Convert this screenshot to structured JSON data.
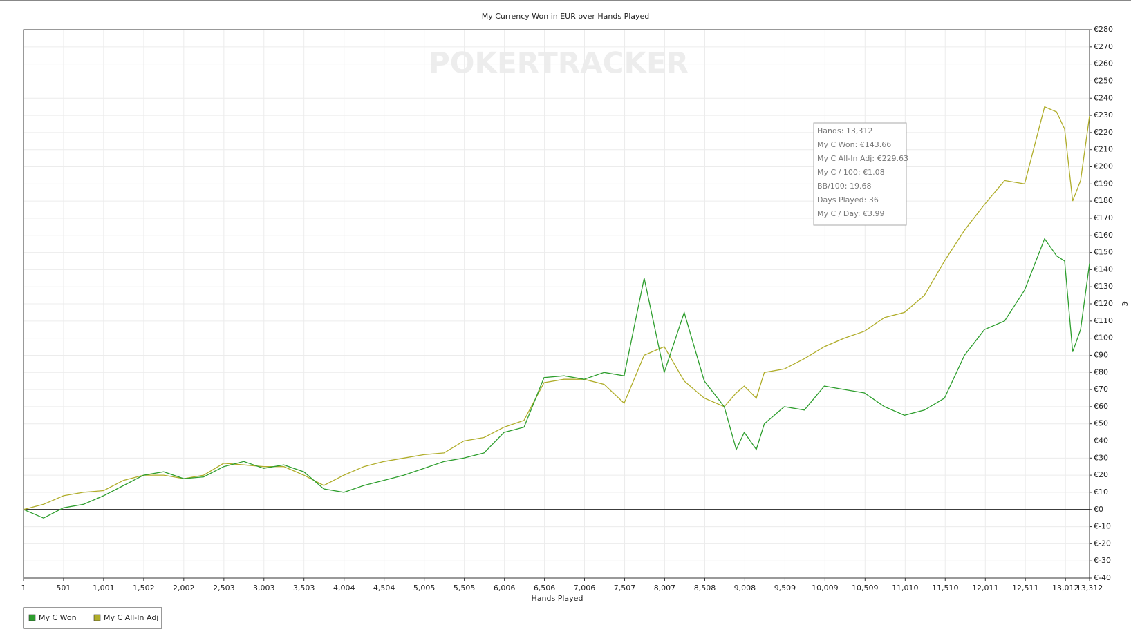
{
  "chart_data": {
    "type": "line",
    "title": "My Currency Won in EUR over Hands Played",
    "watermark": "POKERTRACKER",
    "x_label": "Hands Played",
    "y_label": "€",
    "grid": true,
    "legend": "bottom-left",
    "x": [
      1,
      251,
      501,
      751,
      1001,
      1251,
      1501,
      1751,
      2001,
      2251,
      2501,
      2751,
      3001,
      3251,
      3501,
      3751,
      4001,
      4251,
      4501,
      4751,
      5001,
      5251,
      5501,
      5751,
      6001,
      6251,
      6501,
      6751,
      7001,
      7251,
      7501,
      7751,
      8001,
      8251,
      8501,
      8751,
      8901,
      9001,
      9151,
      9251,
      9501,
      9751,
      10001,
      10251,
      10501,
      10751,
      11001,
      11251,
      11501,
      11751,
      12001,
      12251,
      12501,
      12751,
      12901,
      13001,
      13101,
      13201,
      13312
    ],
    "series": [
      {
        "name": "My C Won",
        "color": "#2e9e2e",
        "values": [
          0,
          -5,
          1,
          3,
          8,
          14,
          20,
          22,
          18,
          19,
          25,
          28,
          24,
          26,
          22,
          12,
          10,
          14,
          17,
          20,
          24,
          28,
          30,
          33,
          45,
          48,
          77,
          78,
          76,
          80,
          78,
          135,
          80,
          115,
          75,
          60,
          35,
          45,
          35,
          50,
          60,
          58,
          72,
          70,
          68,
          60,
          55,
          58,
          65,
          90,
          105,
          110,
          128,
          158,
          148,
          145,
          92,
          105,
          143.66
        ]
      },
      {
        "name": "My C All-In Adj",
        "color": "#b0ad2a",
        "values": [
          0,
          3,
          8,
          10,
          11,
          17,
          20,
          20,
          18,
          20,
          27,
          26,
          25,
          25,
          20,
          14,
          20,
          25,
          28,
          30,
          32,
          33,
          40,
          42,
          48,
          52,
          74,
          76,
          76,
          73,
          62,
          90,
          95,
          75,
          65,
          60,
          68,
          72,
          65,
          80,
          82,
          88,
          95,
          100,
          104,
          112,
          115,
          125,
          145,
          163,
          178,
          192,
          190,
          235,
          232,
          222,
          180,
          192,
          229.63
        ]
      }
    ],
    "xlim": [
      1,
      13312
    ],
    "xticks": [
      1,
      {
        "value": 501,
        "label": "501"
      },
      {
        "value": 1001,
        "label": "1,001"
      },
      {
        "value": 1502,
        "label": "1,502"
      },
      {
        "value": 2002,
        "label": "2,002"
      },
      {
        "value": 2503,
        "label": "2,503"
      },
      {
        "value": 3003,
        "label": "3,003"
      },
      {
        "value": 3503,
        "label": "3,503"
      },
      {
        "value": 4004,
        "label": "4,004"
      },
      {
        "value": 4504,
        "label": "4,504"
      },
      {
        "value": 5005,
        "label": "5,005"
      },
      {
        "value": 5505,
        "label": "5,505"
      },
      {
        "value": 6006,
        "label": "6,006"
      },
      {
        "value": 6506,
        "label": "6,506"
      },
      {
        "value": 7006,
        "label": "7,006"
      },
      {
        "value": 7507,
        "label": "7,507"
      },
      {
        "value": 8007,
        "label": "8,007"
      },
      {
        "value": 8508,
        "label": "8,508"
      },
      {
        "value": 9008,
        "label": "9,008"
      },
      {
        "value": 9509,
        "label": "9,509"
      },
      {
        "value": 10009,
        "label": "10,009"
      },
      {
        "value": 10509,
        "label": "10,509"
      },
      {
        "value": 11010,
        "label": "11,010"
      },
      {
        "value": 11510,
        "label": "11,510"
      },
      {
        "value": 12011,
        "label": "12,011"
      },
      {
        "value": 12511,
        "label": "12,511"
      },
      {
        "value": 13012,
        "label": "13,012"
      },
      {
        "value": 13312,
        "label": "13,312"
      }
    ],
    "ylim": [
      -40,
      280
    ],
    "yticks": [
      {
        "value": -40,
        "label": "€-40"
      },
      {
        "value": -30,
        "label": "€-30"
      },
      {
        "value": -20,
        "label": "€-20"
      },
      {
        "value": -10,
        "label": "€-10"
      },
      {
        "value": 0,
        "label": "€0"
      },
      {
        "value": 10,
        "label": "€10"
      },
      {
        "value": 20,
        "label": "€20"
      },
      {
        "value": 30,
        "label": "€30"
      },
      {
        "value": 40,
        "label": "€40"
      },
      {
        "value": 50,
        "label": "€50"
      },
      {
        "value": 60,
        "label": "€60"
      },
      {
        "value": 70,
        "label": "€70"
      },
      {
        "value": 80,
        "label": "€80"
      },
      {
        "value": 90,
        "label": "€90"
      },
      {
        "value": 100,
        "label": "€100"
      },
      {
        "value": 110,
        "label": "€110"
      },
      {
        "value": 120,
        "label": "€120"
      },
      {
        "value": 130,
        "label": "€130"
      },
      {
        "value": 140,
        "label": "€140"
      },
      {
        "value": 150,
        "label": "€150"
      },
      {
        "value": 160,
        "label": "€160"
      },
      {
        "value": 170,
        "label": "€170"
      },
      {
        "value": 180,
        "label": "€180"
      },
      {
        "value": 190,
        "label": "€190"
      },
      {
        "value": 200,
        "label": "€200"
      },
      {
        "value": 210,
        "label": "€210"
      },
      {
        "value": 220,
        "label": "€220"
      },
      {
        "value": 230,
        "label": "€230"
      },
      {
        "value": 240,
        "label": "€240"
      },
      {
        "value": 250,
        "label": "€250"
      },
      {
        "value": 260,
        "label": "€260"
      },
      {
        "value": 270,
        "label": "€270"
      },
      {
        "value": 280,
        "label": "€280"
      }
    ],
    "tooltip": [
      "Hands: 13,312",
      "My C Won: €143.66",
      "My C All-In Adj: €229.63",
      "My C / 100: €1.08",
      "BB/100: 19.68",
      "Days Played: 36",
      "My C / Day: €3.99"
    ]
  }
}
